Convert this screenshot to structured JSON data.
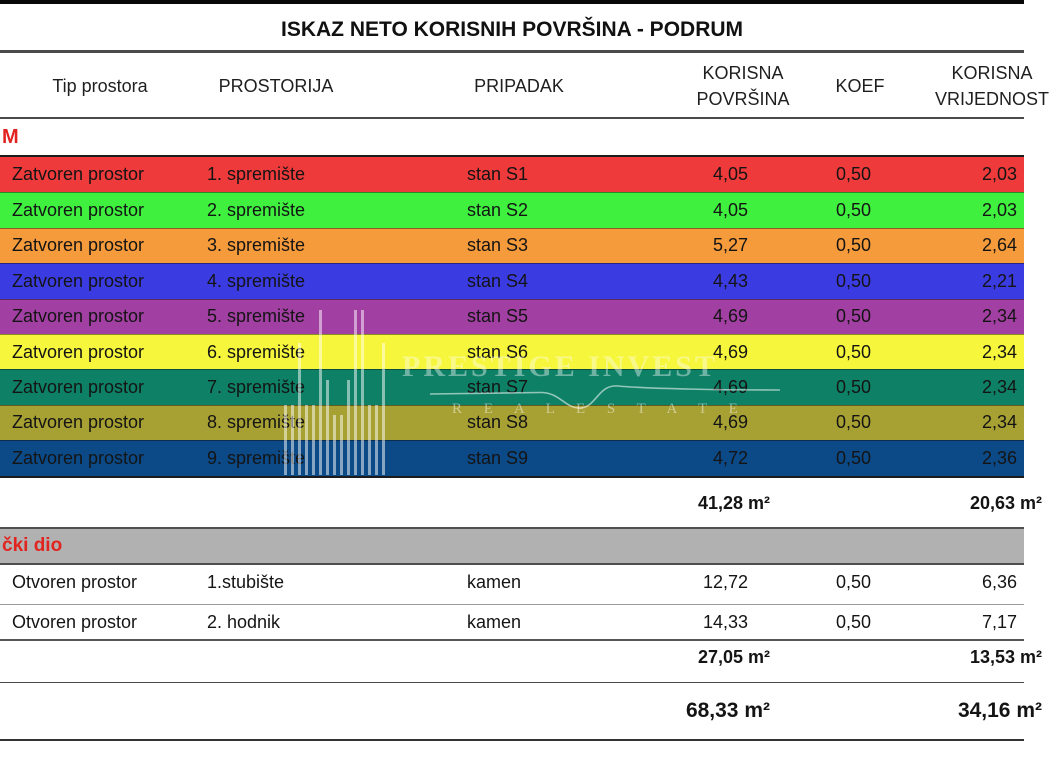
{
  "header": {
    "title": "ISKAZ NETO KORISNIH POVRŠINA - PODRUM",
    "columns": {
      "tip": "Tip prostora",
      "prostorija": "PROSTORIJA",
      "pripadak": "PRIPADAK",
      "korisna_line1": "KORISNA",
      "korisna_line2": "POVRŠINA",
      "koef": "KOEF",
      "vrijednost_line1": "KORISNA",
      "vrijednost_line2": "VRIJEDNOST"
    }
  },
  "sections": [
    {
      "label": "M",
      "rows": [
        {
          "tip": "Zatvoren prostor",
          "prostorija": "1. spremište",
          "pripadak": "stan S1",
          "korisna": "4,05",
          "koef": "0,50",
          "vrijednost": "2,03",
          "color": "#ee3a3b"
        },
        {
          "tip": "Zatvoren prostor",
          "prostorija": "2. spremište",
          "pripadak": "stan S2",
          "korisna": "4,05",
          "koef": "0,50",
          "vrijednost": "2,03",
          "color": "#3ff03f"
        },
        {
          "tip": "Zatvoren prostor",
          "prostorija": "3. spremište",
          "pripadak": "stan S3",
          "korisna": "5,27",
          "koef": "0,50",
          "vrijednost": "2,64",
          "color": "#f59b3b"
        },
        {
          "tip": "Zatvoren prostor",
          "prostorija": "4. spremište",
          "pripadak": "stan S4",
          "korisna": "4,43",
          "koef": "0,50",
          "vrijednost": "2,21",
          "color": "#3b3be2"
        },
        {
          "tip": "Zatvoren prostor",
          "prostorija": "5. spremište",
          "pripadak": "stan S5",
          "korisna": "4,69",
          "koef": "0,50",
          "vrijednost": "2,34",
          "color": "#a23fa2"
        },
        {
          "tip": "Zatvoren prostor",
          "prostorija": "6. spremište",
          "pripadak": "stan S6",
          "korisna": "4,69",
          "koef": "0,50",
          "vrijednost": "2,34",
          "color": "#f6f63c"
        },
        {
          "tip": "Zatvoren prostor",
          "prostorija": "7. spremište",
          "pripadak": "stan S7",
          "korisna": "4,69",
          "koef": "0,50",
          "vrijednost": "2,34",
          "color": "#0e8066"
        },
        {
          "tip": "Zatvoren prostor",
          "prostorija": "8. spremište",
          "pripadak": "stan S8",
          "korisna": "4,69",
          "koef": "0,50",
          "vrijednost": "2,34",
          "color": "#a7a033"
        },
        {
          "tip": "Zatvoren prostor",
          "prostorija": "9. spremište",
          "pripadak": "stan S9",
          "korisna": "4,72",
          "koef": "0,50",
          "vrijednost": "2,36",
          "color": "#0c4a87"
        }
      ],
      "subtotal": {
        "korisna": "41,28 m²",
        "vrijednost": "20,63 m²"
      }
    },
    {
      "label": "čki dio",
      "rows": [
        {
          "tip": "Otvoren prostor",
          "prostorija": "1.stubište",
          "pripadak": "kamen",
          "korisna": "12,72",
          "koef": "0,50",
          "vrijednost": "6,36"
        },
        {
          "tip": "Otvoren prostor",
          "prostorija": "2. hodnik",
          "pripadak": "kamen",
          "korisna": "14,33",
          "koef": "0,50",
          "vrijednost": "7,17"
        }
      ],
      "subtotal": {
        "korisna": "27,05 m²",
        "vrijednost": "13,53 m²"
      }
    }
  ],
  "grand_total": {
    "korisna": "68,33 m²",
    "vrijednost": "34,16 m²"
  },
  "watermark": {
    "line1": "PRESTIGE INVEST",
    "line2": "R E A L    E S T A T E",
    "bars": [
      70,
      70,
      132,
      70,
      70,
      165,
      95,
      60,
      60,
      95,
      165,
      165,
      70,
      70,
      132
    ]
  },
  "colors": {
    "accent_red": "#e22420",
    "gray_band": "#b1b1b1",
    "text": "#141414"
  }
}
